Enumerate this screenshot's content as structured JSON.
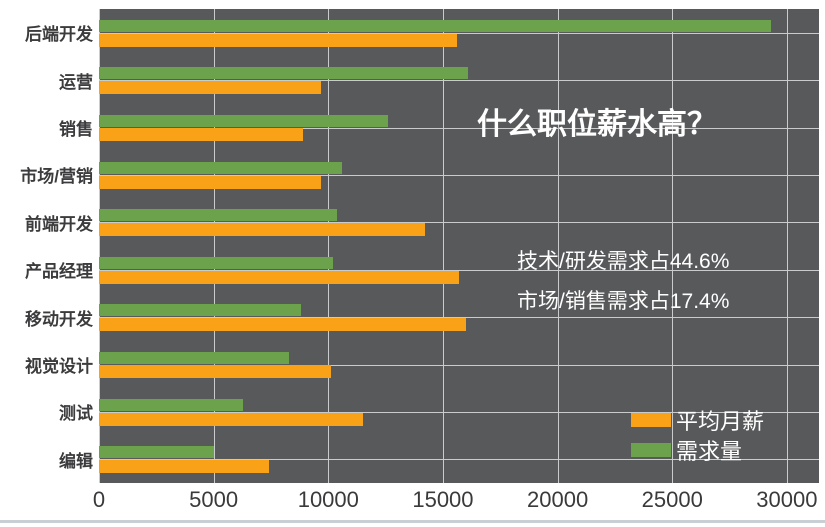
{
  "chart_data": {
    "type": "bar",
    "orientation": "horizontal",
    "title": "什么职位薪水高？",
    "categories": [
      "后端开发",
      "运营",
      "销售",
      "市场/营销",
      "前端开发",
      "产品经理",
      "移动开发",
      "视觉设计",
      "测试",
      "编辑"
    ],
    "series": [
      {
        "name": "平均月薪",
        "color": "#FAA217",
        "values": [
          15600,
          9700,
          8900,
          9700,
          14200,
          15700,
          16000,
          10100,
          11500,
          7400
        ]
      },
      {
        "name": "需求量",
        "color": "#6BA24B",
        "values": [
          29300,
          16100,
          12600,
          10600,
          10400,
          10200,
          8800,
          8300,
          6300,
          5000
        ]
      }
    ],
    "bar_order_top_to_bottom": [
      "需求量",
      "平均月薪"
    ],
    "x_ticks": [
      0,
      5000,
      10000,
      15000,
      20000,
      25000,
      30000
    ],
    "x_tick_labels": [
      "0",
      "5000",
      "10000",
      "15000",
      "20000",
      "25000",
      "30000"
    ],
    "xlim": [
      0,
      30000
    ],
    "axis_display_max": 31400,
    "grid": true,
    "annotations": [
      "技术/研发需求占44.6%",
      "市场/销售需求占17.4%"
    ],
    "legend": [
      {
        "label": "平均月薪",
        "color": "#FAA217"
      },
      {
        "label": "需求量",
        "color": "#6BA24B"
      }
    ],
    "legend_position": "inside-bottom-right",
    "colors": {
      "plot_background": "#58595B",
      "gridline": "#C9CBCD",
      "axis_text": "#3A3A3C",
      "category_text": "#3C3C3E",
      "overlay_text": "#FFFFFF",
      "page_background": "#FFFFFF",
      "bottom_rule": "#C8CFD5"
    }
  }
}
